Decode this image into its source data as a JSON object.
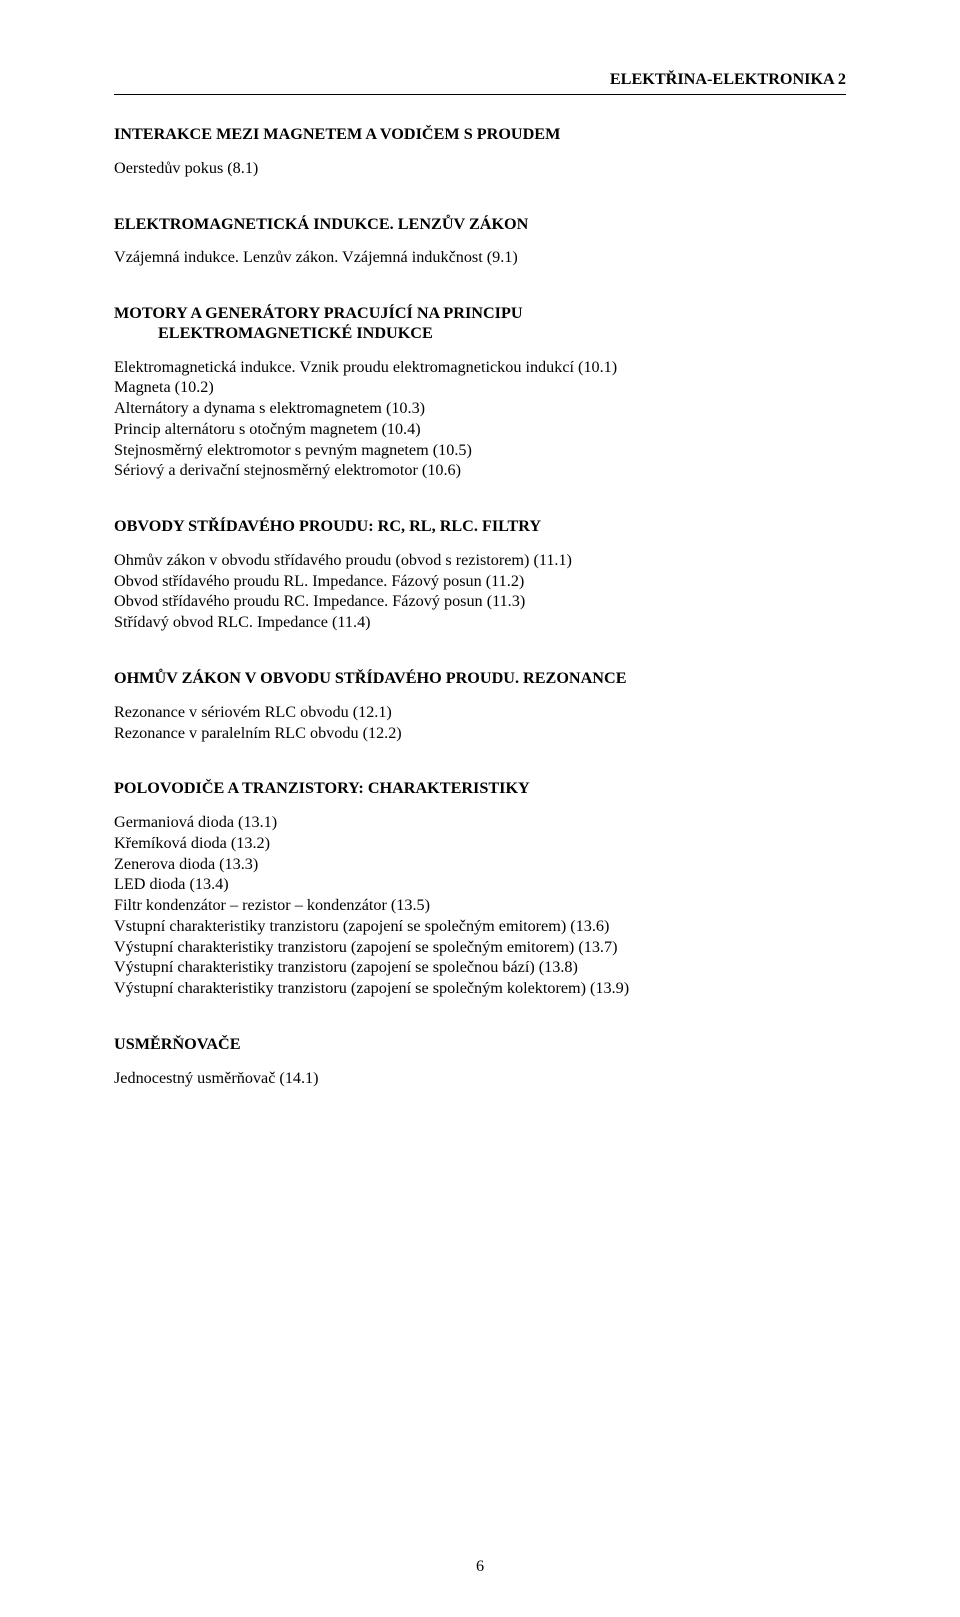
{
  "header": {
    "title": "ELEKTŘINA-ELEKTRONIKA 2"
  },
  "sections": [
    {
      "heading": "INTERAKCE MEZI MAGNETEM A VODIČEM S PROUDEM",
      "lines": [
        "Oerstedův pokus (8.1)"
      ]
    },
    {
      "heading": "ELEKTROMAGNETICKÁ INDUKCE. LENZŮV ZÁKON",
      "lines": [
        "Vzájemná indukce. Lenzův zákon. Vzájemná indukčnost (9.1)"
      ]
    },
    {
      "heading_line1": "MOTORY A GENERÁTORY PRACUJÍCÍ NA PRINCIPU",
      "heading_line2": "ELEKTROMAGNETICKÉ INDUKCE",
      "lines": [
        "Elektromagnetická indukce. Vznik proudu elektromagnetickou indukcí (10.1)",
        "Magneta (10.2)",
        "Alternátory a dynama s elektromagnetem (10.3)",
        "Princip alternátoru s otočným magnetem (10.4)",
        "Stejnosměrný elektromotor s pevným magnetem (10.5)",
        "Sériový a derivační stejnosměrný elektromotor (10.6)"
      ]
    },
    {
      "heading": "OBVODY STŘÍDAVÉHO PROUDU: RC, RL, RLC. FILTRY",
      "lines": [
        "Ohmův zákon v obvodu střídavého proudu (obvod s rezistorem) (11.1)",
        "Obvod střídavého proudu RL. Impedance. Fázový posun (11.2)",
        "Obvod střídavého proudu RC. Impedance. Fázový posun (11.3)",
        "Střídavý obvod RLC. Impedance (11.4)"
      ]
    },
    {
      "heading": "OHMŮV ZÁKON V OBVODU STŘÍDAVÉHO PROUDU. REZONANCE",
      "lines": [
        "Rezonance v sériovém RLC obvodu (12.1)",
        "Rezonance v paralelním RLC obvodu (12.2)"
      ]
    },
    {
      "heading": "POLOVODIČE A TRANZISTORY: CHARAKTERISTIKY",
      "lines": [
        "Germaniová dioda (13.1)",
        "Křemíková dioda (13.2)",
        "Zenerova dioda (13.3)",
        "LED dioda (13.4)",
        "Filtr kondenzátor – rezistor – kondenzátor (13.5)",
        "Vstupní charakteristiky tranzistoru (zapojení se společným emitorem) (13.6)",
        "Výstupní charakteristiky tranzistoru (zapojení se společným emitorem) (13.7)",
        "Výstupní charakteristiky tranzistoru (zapojení se společnou bází) (13.8)",
        "Výstupní charakteristiky tranzistoru (zapojení se společným kolektorem) (13.9)"
      ]
    },
    {
      "heading": "USMĚRŇOVAČE",
      "lines": [
        "Jednocestný usměrňovač (14.1)"
      ]
    }
  ],
  "footer": {
    "page_number": "6"
  }
}
